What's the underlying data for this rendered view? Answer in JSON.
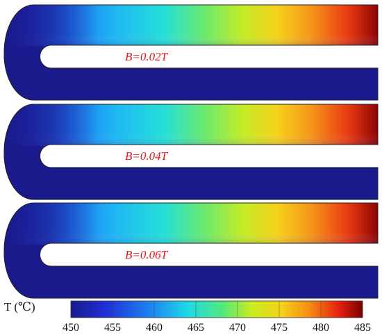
{
  "panels": [
    {
      "label": "B=0.02T",
      "field": "B",
      "value": "=0.02",
      "unit": "T"
    },
    {
      "label": "B=0.04T",
      "field": "B",
      "value": "=0.04",
      "unit": "T"
    },
    {
      "label": "B=0.06T",
      "field": "B",
      "value": "=0.06",
      "unit": "T"
    }
  ],
  "colorbar": {
    "title": "T (℃)",
    "min": 450,
    "max": 485,
    "ticks": [
      "450",
      "455",
      "460",
      "465",
      "470",
      "475",
      "480",
      "485"
    ],
    "colormap": "jet"
  },
  "colors": {
    "label_red": "#e8151b",
    "cold": "#1a1a8c",
    "hot": "#7a0000"
  }
}
